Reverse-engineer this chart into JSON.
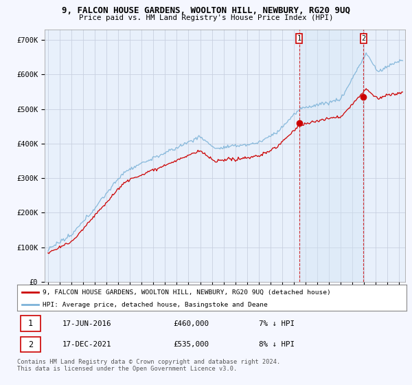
{
  "title1": "9, FALCON HOUSE GARDENS, WOOLTON HILL, NEWBURY, RG20 9UQ",
  "title2": "Price paid vs. HM Land Registry's House Price Index (HPI)",
  "ylabel_ticks": [
    "£0",
    "£100K",
    "£200K",
    "£300K",
    "£400K",
    "£500K",
    "£600K",
    "£700K"
  ],
  "ytick_vals": [
    0,
    100000,
    200000,
    300000,
    400000,
    500000,
    600000,
    700000
  ],
  "ylim": [
    0,
    730000
  ],
  "xlim_start": 1994.7,
  "xlim_end": 2025.5,
  "legend_line1": "9, FALCON HOUSE GARDENS, WOOLTON HILL, NEWBURY, RG20 9UQ (detached house)",
  "legend_line2": "HPI: Average price, detached house, Basingstoke and Deane",
  "sale1_date": "17-JUN-2016",
  "sale1_price": "£460,000",
  "sale1_hpi": "7% ↓ HPI",
  "sale1_x": 2016.46,
  "sale1_y": 460000,
  "sale2_date": "17-DEC-2021",
  "sale2_price": "£535,000",
  "sale2_hpi": "8% ↓ HPI",
  "sale2_x": 2021.96,
  "sale2_y": 535000,
  "footnote": "Contains HM Land Registry data © Crown copyright and database right 2024.\nThis data is licensed under the Open Government Licence v3.0.",
  "line_color_red": "#cc0000",
  "line_color_blue": "#7db3d8",
  "shade_color": "#d0e4f5",
  "background_color": "#f5f7ff",
  "plot_bg": "#e8f0fb",
  "grid_color": "#c8d0e0"
}
